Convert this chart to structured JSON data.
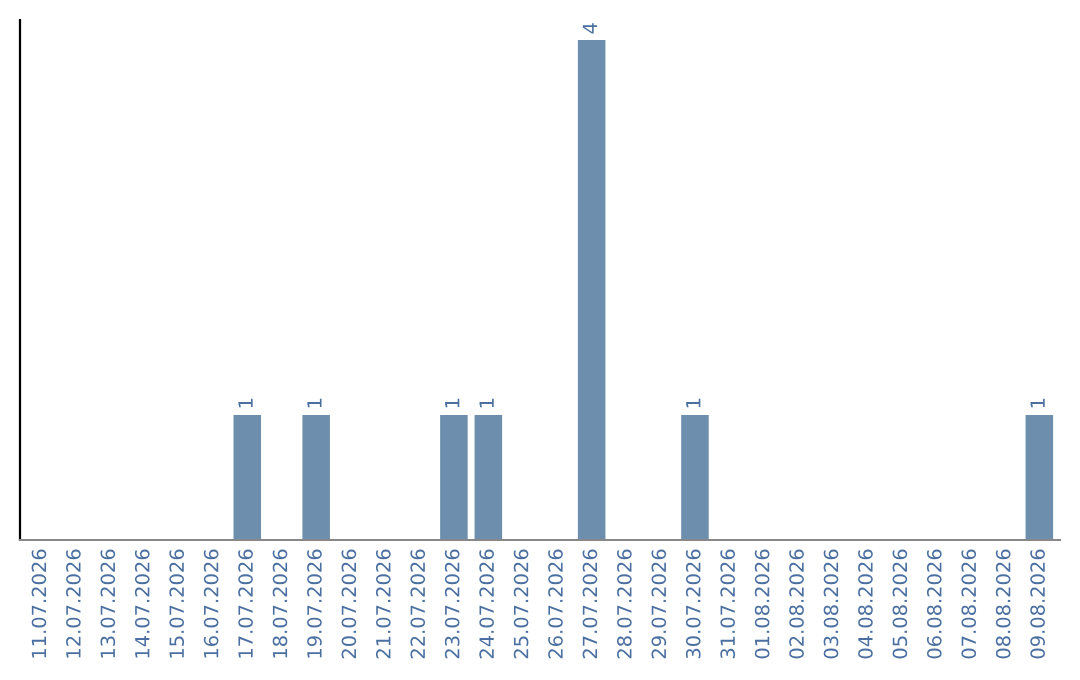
{
  "chart_data": {
    "type": "bar",
    "categories": [
      "11.07.2026",
      "12.07.2026",
      "13.07.2026",
      "14.07.2026",
      "15.07.2026",
      "16.07.2026",
      "17.07.2026",
      "18.07.2026",
      "19.07.2026",
      "20.07.2026",
      "21.07.2026",
      "22.07.2026",
      "23.07.2026",
      "24.07.2026",
      "25.07.2026",
      "26.07.2026",
      "27.07.2026",
      "28.07.2026",
      "29.07.2026",
      "30.07.2026",
      "31.07.2026",
      "01.08.2026",
      "02.08.2026",
      "03.08.2026",
      "04.08.2026",
      "05.08.2026",
      "06.08.2026",
      "07.08.2026",
      "08.08.2026",
      "09.08.2026"
    ],
    "values": [
      0,
      0,
      0,
      0,
      0,
      0,
      1,
      0,
      1,
      0,
      0,
      0,
      1,
      1,
      0,
      0,
      4,
      0,
      0,
      1,
      0,
      0,
      0,
      0,
      0,
      0,
      0,
      0,
      0,
      1
    ],
    "value_labels": [
      null,
      null,
      null,
      null,
      null,
      null,
      "1",
      null,
      "1",
      null,
      null,
      null,
      "1",
      "1",
      null,
      null,
      "4",
      null,
      null,
      "1",
      null,
      null,
      null,
      null,
      null,
      null,
      null,
      null,
      null,
      "1"
    ],
    "color": "#6d8fad",
    "ylim": [
      0,
      4.16
    ],
    "tick_labels": "x",
    "grid": false
  }
}
